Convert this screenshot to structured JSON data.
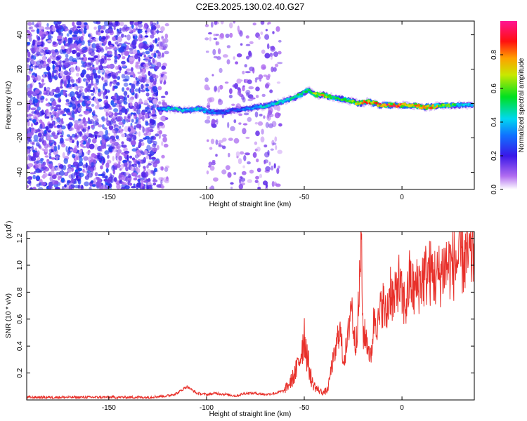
{
  "figure": {
    "title": "C2E3.2025.130.02.40.G27"
  },
  "chart_data": [
    {
      "type": "heatmap",
      "title": "C2E3.2025.130.02.40.G27",
      "xlabel": "Height of straight line (km)",
      "ylabel": "Frequency (Hz)",
      "xlim": [
        -192,
        37
      ],
      "ylim": [
        -50,
        48
      ],
      "xticks": [
        -150,
        -100,
        -50,
        0
      ],
      "xtick_labels": [
        "-150",
        "-100",
        "-50",
        "0"
      ],
      "yticks": [
        -40,
        -20,
        0,
        20,
        40
      ],
      "ytick_labels": [
        "-40",
        "-20",
        "0",
        "20",
        "40"
      ],
      "colorbar": {
        "label": "Normalized spectral amplitude",
        "range": [
          0,
          1
        ],
        "ticks": [
          0.0,
          0.2,
          0.4,
          0.6,
          0.8
        ],
        "tick_labels": [
          "0.0",
          "0.2",
          "0.4",
          "0.6",
          "0.8"
        ],
        "colormap": "rainbow (white-violet-blue-cyan-green-yellow-red-magenta)"
      },
      "ridge": {
        "description": "frequency of main spectral line vs height",
        "x": [
          -125,
          -118,
          -110,
          -104,
          -98,
          -92,
          -86,
          -80,
          -74,
          -68,
          -62,
          -56,
          -52,
          -48,
          -44,
          -40,
          -34,
          -28,
          -22,
          -18,
          -14,
          -10,
          -5,
          0,
          5,
          10,
          15,
          20,
          25,
          30,
          36
        ],
        "y": [
          -3,
          -3,
          -4,
          -3,
          -5,
          -5,
          -4,
          -3,
          -2,
          -1,
          1,
          3,
          5,
          8,
          5,
          5,
          3,
          2,
          0,
          1,
          0,
          -1,
          -1,
          -1,
          -1,
          -2,
          -2,
          -1,
          -1,
          -1,
          -1
        ],
        "amplitude": [
          0.3,
          0.45,
          0.4,
          0.45,
          0.35,
          0.3,
          0.3,
          0.35,
          0.4,
          0.45,
          0.45,
          0.5,
          0.55,
          0.55,
          0.7,
          0.75,
          0.55,
          0.55,
          0.75,
          0.85,
          0.8,
          0.9,
          0.9,
          0.9,
          0.75,
          0.9,
          0.85,
          0.6,
          0.6,
          0.45,
          0.4
        ]
      },
      "grid": false,
      "legend": "colorbar right"
    },
    {
      "type": "line",
      "xlabel": "Height of straight line (km)",
      "ylabel": "SNR (10 * v/v)",
      "y_multiplier_label": "(x10",
      "y_multiplier_exponent": "4",
      "xlim": [
        -192,
        37
      ],
      "ylim": [
        0,
        1.25
      ],
      "xticks": [
        -150,
        -100,
        -50,
        0
      ],
      "xtick_labels": [
        "-150",
        "-100",
        "-50",
        "0"
      ],
      "yticks": [
        0.2,
        0.4,
        0.6,
        0.8,
        1.0,
        1.2
      ],
      "ytick_labels": [
        "0.2",
        "0.4",
        "0.6",
        "0.8",
        "1.0",
        "1.2"
      ],
      "color": "#e8302a",
      "series": [
        {
          "x": [
            -192,
            -180,
            -170,
            -160,
            -150,
            -140,
            -130,
            -120,
            -115,
            -110,
            -105,
            -100,
            -95,
            -90,
            -85,
            -80,
            -75,
            -70,
            -65,
            -60,
            -57,
            -54,
            -52,
            -50,
            -48,
            -46,
            -44,
            -42,
            -40,
            -38,
            -36,
            -34,
            -32,
            -30,
            -28,
            -26,
            -24,
            -22,
            -21,
            -20,
            -18,
            -16,
            -14,
            -12,
            -10,
            -8,
            -6,
            -4,
            -2,
            0,
            2,
            4,
            6,
            8,
            10,
            14,
            18,
            22,
            26,
            30,
            34,
            37
          ],
          "y": [
            0.02,
            0.02,
            0.02,
            0.02,
            0.02,
            0.02,
            0.02,
            0.03,
            0.05,
            0.1,
            0.05,
            0.04,
            0.05,
            0.04,
            0.03,
            0.05,
            0.05,
            0.04,
            0.05,
            0.07,
            0.12,
            0.2,
            0.3,
            0.45,
            0.25,
            0.12,
            0.08,
            0.06,
            0.05,
            0.07,
            0.25,
            0.35,
            0.55,
            0.3,
            0.4,
            0.75,
            0.4,
            0.7,
            1.25,
            0.5,
            0.45,
            0.3,
            0.65,
            0.55,
            0.75,
            0.6,
            0.85,
            0.7,
            0.9,
            0.75,
            0.7,
            0.9,
            0.8,
            0.85,
            0.9,
            0.95,
            0.9,
            1.0,
            1.0,
            1.05,
            1.05,
            1.1
          ]
        }
      ],
      "grid": false,
      "legend": "none"
    }
  ]
}
